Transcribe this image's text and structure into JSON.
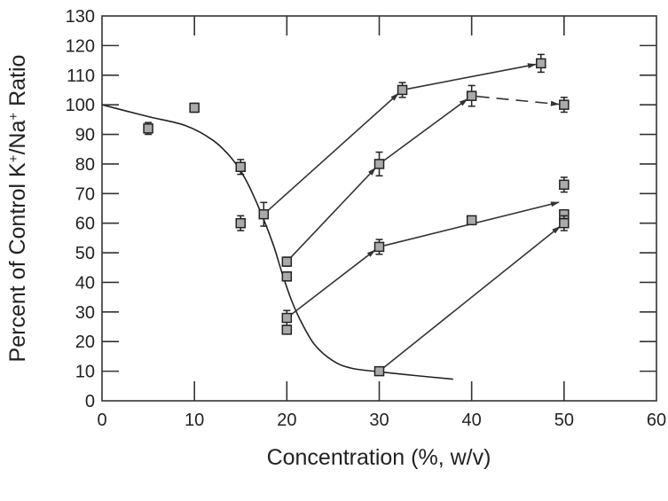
{
  "chart_data": {
    "type": "scatter",
    "title": "",
    "xlabel": "Concentration (%, w/v)",
    "ylabel_parts": [
      "Percent of Control K",
      "+",
      "/Na",
      "+",
      " Ratio"
    ],
    "xlim": [
      0,
      60
    ],
    "ylim": [
      0,
      130
    ],
    "xticks": [
      0,
      10,
      20,
      30,
      40,
      50,
      60
    ],
    "yticks": [
      0,
      10,
      20,
      30,
      40,
      50,
      60,
      70,
      80,
      90,
      100,
      110,
      120,
      130
    ],
    "grid": false,
    "marker_color": "#aaaaaa",
    "points": [
      {
        "x": 5,
        "y": 92,
        "err": 2
      },
      {
        "x": 10,
        "y": 99,
        "err": 1.5
      },
      {
        "x": 15,
        "y": 79,
        "err": 2.5
      },
      {
        "x": 15,
        "y": 60,
        "err": 2.5
      },
      {
        "x": 17.5,
        "y": 63,
        "err": 4
      },
      {
        "x": 20,
        "y": 47,
        "err": 1.5
      },
      {
        "x": 20,
        "y": 42,
        "err": 1.5
      },
      {
        "x": 20,
        "y": 28,
        "err": 2.5
      },
      {
        "x": 20,
        "y": 24,
        "err": 0
      },
      {
        "x": 30,
        "y": 80,
        "err": 4
      },
      {
        "x": 30,
        "y": 52,
        "err": 2.5
      },
      {
        "x": 30,
        "y": 10,
        "err": 0.5
      },
      {
        "x": 32.5,
        "y": 105,
        "err": 2.5
      },
      {
        "x": 40,
        "y": 103,
        "err": 3.5
      },
      {
        "x": 40,
        "y": 61,
        "err": 1
      },
      {
        "x": 47.5,
        "y": 114,
        "err": 3
      },
      {
        "x": 50,
        "y": 100,
        "err": 2.5
      },
      {
        "x": 50,
        "y": 73,
        "err": 2.5
      },
      {
        "x": 50,
        "y": 63,
        "err": 0
      },
      {
        "x": 50,
        "y": 60,
        "err": 2.5
      }
    ],
    "fit_curve": [
      [
        0,
        100
      ],
      [
        5,
        96
      ],
      [
        9,
        93
      ],
      [
        12,
        88
      ],
      [
        14,
        82
      ],
      [
        15.5,
        75
      ],
      [
        17,
        65
      ],
      [
        18.5,
        53
      ],
      [
        19.5,
        43
      ],
      [
        20.5,
        34
      ],
      [
        21.5,
        27
      ],
      [
        23,
        19
      ],
      [
        25,
        13.5
      ],
      [
        27,
        11
      ],
      [
        30,
        9.8
      ],
      [
        34,
        8.5
      ],
      [
        38,
        7.3
      ]
    ],
    "arrows": [
      {
        "from": [
          17.5,
          63
        ],
        "to": [
          32.5,
          105
        ],
        "dashed": false
      },
      {
        "from": [
          32.5,
          105
        ],
        "to": [
          47.5,
          114
        ],
        "dashed": false
      },
      {
        "from": [
          20,
          47
        ],
        "to": [
          30,
          80
        ],
        "dashed": false
      },
      {
        "from": [
          30,
          80
        ],
        "to": [
          40,
          103
        ],
        "dashed": false
      },
      {
        "from": [
          40,
          103
        ],
        "to": [
          50,
          100
        ],
        "dashed": true
      },
      {
        "from": [
          20,
          28
        ],
        "to": [
          30,
          52
        ],
        "dashed": false
      },
      {
        "from": [
          30,
          52
        ],
        "to": [
          50,
          67.5
        ],
        "dashed": false
      },
      {
        "from": [
          30,
          10
        ],
        "to": [
          50,
          60
        ],
        "dashed": false
      }
    ]
  }
}
